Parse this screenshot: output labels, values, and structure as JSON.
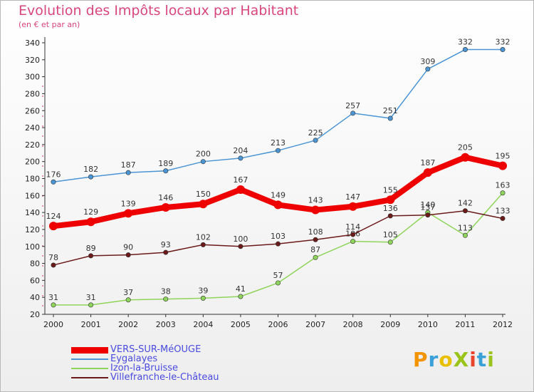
{
  "title": "Evolution des Impôts locaux par Habitant",
  "subtitle": "(en € et par an)",
  "logo": {
    "text": "ProXiti",
    "colors": [
      "#f29400",
      "#3aa0d8",
      "#e8c000",
      "#9ac31c",
      "#e8452c",
      "#3aa0d8",
      "#9ac31c"
    ]
  },
  "chart_data": {
    "type": "line",
    "x": [
      "2000",
      "2001",
      "2002",
      "2003",
      "2004",
      "2005",
      "2006",
      "2007",
      "2008",
      "2009",
      "2010",
      "2011",
      "2012"
    ],
    "ylim": [
      20,
      340
    ],
    "yticks": [
      20,
      40,
      60,
      80,
      100,
      120,
      140,
      160,
      180,
      200,
      220,
      240,
      260,
      280,
      300,
      320,
      340
    ],
    "grid": false,
    "legend_position": "bottom-left",
    "series": [
      {
        "name": "Izon-la-Bruisse",
        "color": "#8fd45b",
        "values": [
          31,
          31,
          37,
          38,
          39,
          41,
          57,
          87,
          106,
          105,
          140,
          113,
          163
        ]
      },
      {
        "name": "Villefranche-le-Château",
        "color": "#6b1a1a",
        "values": [
          78,
          89,
          90,
          93,
          102,
          100,
          103,
          108,
          114,
          136,
          137,
          142,
          133
        ]
      },
      {
        "name": "Eygalayes",
        "color": "#4b95d4",
        "values": [
          176,
          182,
          187,
          189,
          200,
          204,
          213,
          225,
          257,
          251,
          309,
          332,
          332
        ]
      },
      {
        "name": "VERS-SUR-MéOUGE",
        "color": "#ee0000",
        "values": [
          124,
          129,
          139,
          146,
          150,
          167,
          149,
          143,
          147,
          155,
          187,
          205,
          195
        ]
      }
    ],
    "legend_order": [
      "VERS-SUR-MéOUGE",
      "Eygalayes",
      "Izon-la-Bruisse",
      "Villefranche-le-Château"
    ]
  }
}
